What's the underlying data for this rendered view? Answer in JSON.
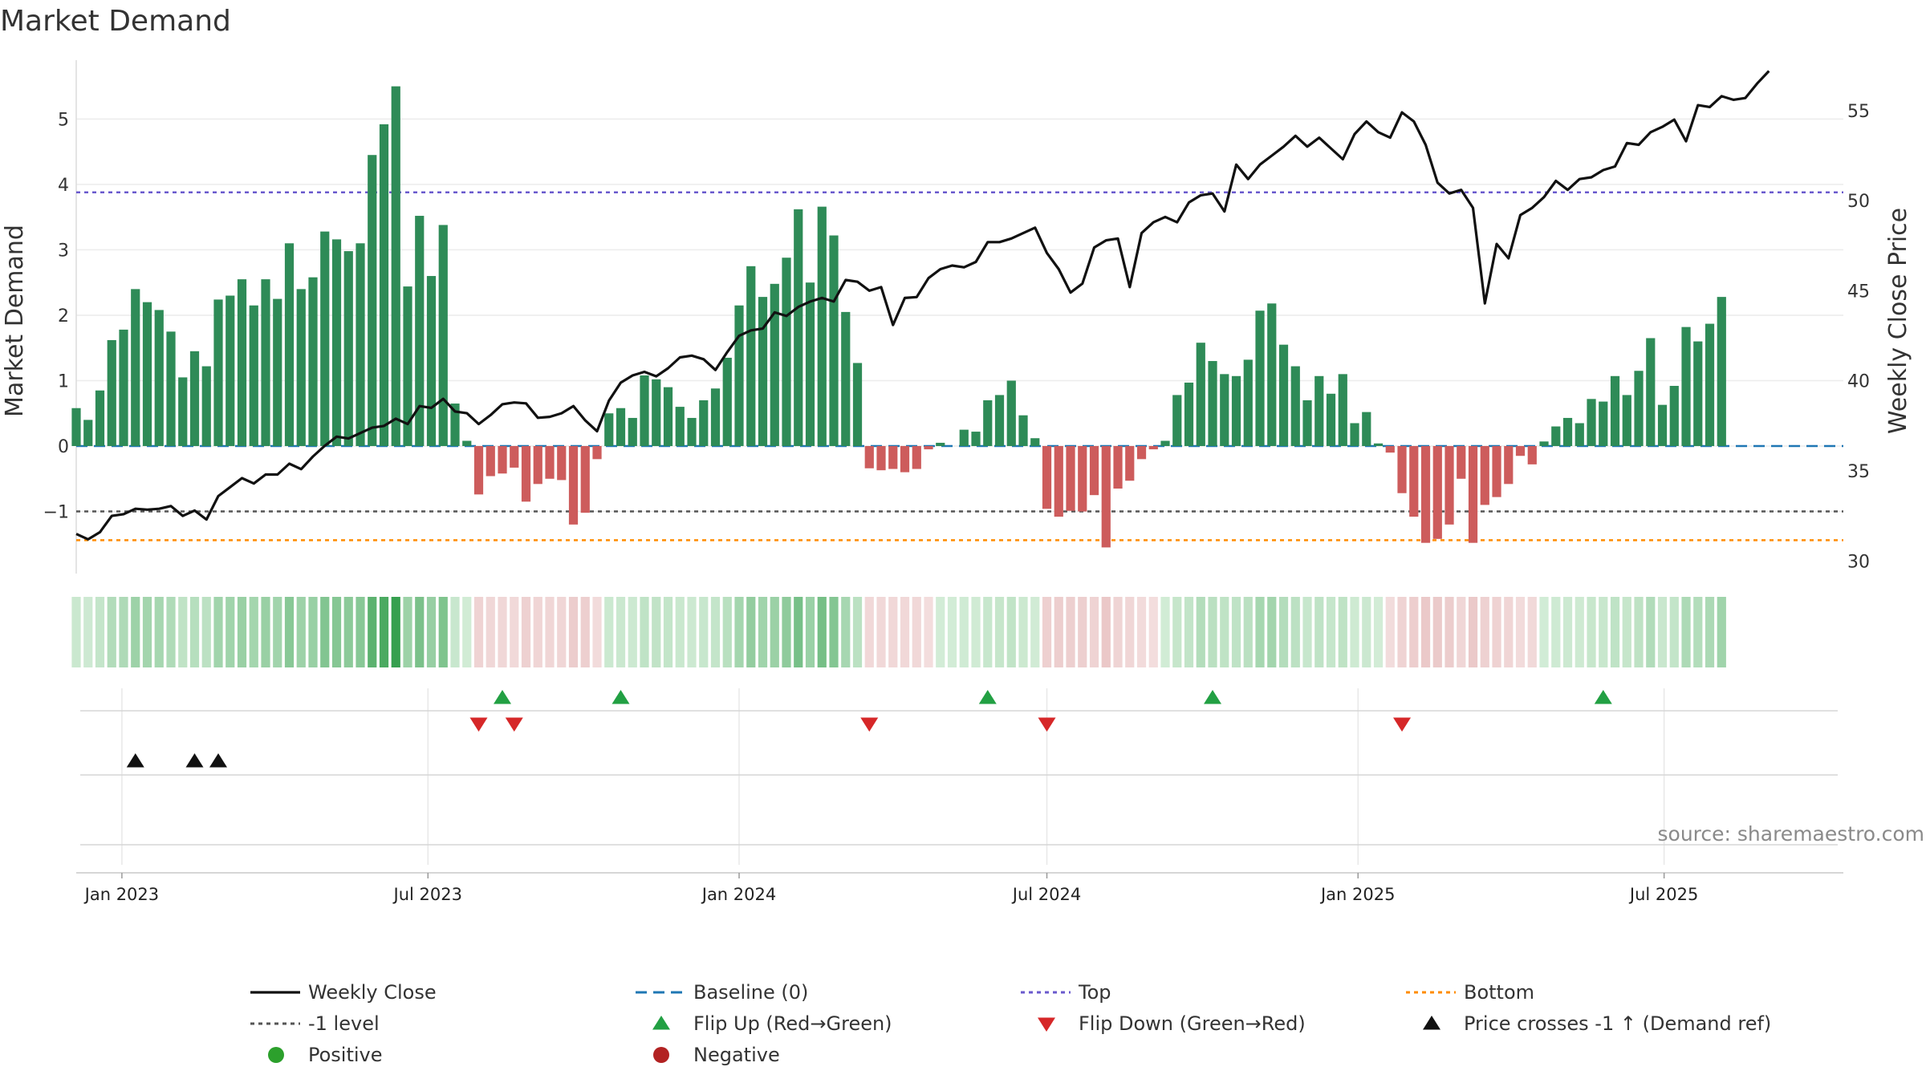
{
  "chart_data": {
    "type": "bar",
    "title": "Market Demand",
    "ylabel_left": "Market Demand",
    "ylabel_right": "Weekly Close Price",
    "ylim_left": [
      -1.95,
      5.9
    ],
    "yticks_left": [
      -1,
      0,
      1,
      2,
      3,
      4,
      5
    ],
    "yticks_left_labels": [
      "−1",
      "0",
      "1",
      "2",
      "3",
      "4",
      "5"
    ],
    "ylim_right": [
      29.3,
      57.8
    ],
    "yticks_right": [
      30,
      35,
      40,
      45,
      50,
      55
    ],
    "yticks_right_labels": [
      "30",
      "35",
      "40",
      "45",
      "50",
      "55"
    ],
    "x_start": "2022-12-05",
    "x_end": "2025-10-15",
    "x_ticks": [
      {
        "label": "Jan 2023",
        "date": "2023-01-01"
      },
      {
        "label": "Jul 2023",
        "date": "2023-07-01"
      },
      {
        "label": "Jan 2024",
        "date": "2024-01-01"
      },
      {
        "label": "Jul 2024",
        "date": "2024-07-01"
      },
      {
        "label": "Jan 2025",
        "date": "2025-01-01"
      },
      {
        "label": "Jul 2025",
        "date": "2025-07-01"
      }
    ],
    "first_week": "2022-12-05",
    "week_interval_days": 7,
    "demand": [
      0.58,
      0.4,
      0.85,
      1.62,
      1.78,
      2.4,
      2.2,
      2.08,
      1.75,
      1.05,
      1.45,
      1.22,
      2.24,
      2.3,
      2.55,
      2.15,
      2.55,
      2.25,
      3.1,
      2.4,
      2.58,
      3.28,
      3.16,
      2.98,
      3.1,
      4.45,
      4.92,
      5.5,
      2.44,
      3.52,
      2.6,
      3.38,
      0.65,
      0.08,
      -0.74,
      -0.46,
      -0.42,
      -0.33,
      -0.85,
      -0.58,
      -0.5,
      -0.52,
      -1.2,
      -1.02,
      -0.2,
      0.5,
      0.58,
      0.43,
      1.08,
      1.02,
      0.9,
      0.6,
      0.43,
      0.7,
      0.88,
      1.35,
      2.15,
      2.75,
      2.28,
      2.48,
      2.88,
      3.62,
      2.5,
      3.66,
      3.22,
      2.05,
      1.27,
      -0.34,
      -0.37,
      -0.35,
      -0.4,
      -0.35,
      -0.05,
      0.05,
      0.0,
      0.25,
      0.22,
      0.7,
      0.78,
      1.0,
      0.47,
      0.12,
      -0.96,
      -1.08,
      -0.99,
      -1.0,
      -0.75,
      -1.55,
      -0.65,
      -0.53,
      -0.2,
      -0.05,
      0.08,
      0.78,
      0.97,
      1.58,
      1.3,
      1.1,
      1.07,
      1.32,
      2.07,
      2.18,
      1.55,
      1.22,
      0.7,
      1.07,
      0.8,
      1.1,
      0.35,
      0.52,
      0.04,
      -0.1,
      -0.72,
      -1.08,
      -1.48,
      -1.42,
      -1.2,
      -0.5,
      -1.48,
      -0.9,
      -0.78,
      -0.58,
      -0.15,
      -0.28,
      0.07,
      0.3,
      0.43,
      0.35,
      0.72,
      0.68,
      1.07,
      0.78,
      1.15,
      1.65,
      0.63,
      0.92,
      1.82,
      1.6,
      1.87,
      2.28
    ],
    "close": [
      31.5,
      31.2,
      31.6,
      32.5,
      32.6,
      32.9,
      32.85,
      32.9,
      33.05,
      32.5,
      32.8,
      32.3,
      33.6,
      34.1,
      34.6,
      34.3,
      34.8,
      34.8,
      35.4,
      35.1,
      35.8,
      36.4,
      36.9,
      36.8,
      37.1,
      37.4,
      37.5,
      37.9,
      37.6,
      38.6,
      38.5,
      39.0,
      38.3,
      38.2,
      37.6,
      38.1,
      38.7,
      38.8,
      38.75,
      37.95,
      38.0,
      38.2,
      38.6,
      37.8,
      37.2,
      38.9,
      39.9,
      40.3,
      40.5,
      40.25,
      40.7,
      41.3,
      41.4,
      41.2,
      40.6,
      41.6,
      42.5,
      42.8,
      42.9,
      43.8,
      43.6,
      44.1,
      44.4,
      44.6,
      44.4,
      45.6,
      45.5,
      45.0,
      45.2,
      43.1,
      44.6,
      44.65,
      45.7,
      46.2,
      46.4,
      46.3,
      46.6,
      47.7,
      47.7,
      47.9,
      48.2,
      48.5,
      47.1,
      46.2,
      44.9,
      45.4,
      47.4,
      47.8,
      47.9,
      45.2,
      48.2,
      48.8,
      49.1,
      48.8,
      49.9,
      50.3,
      50.4,
      49.4,
      52.0,
      51.2,
      52.0,
      52.5,
      53.0,
      53.6,
      53.0,
      53.5,
      52.9,
      52.3,
      53.7,
      54.4,
      53.8,
      53.5,
      54.9,
      54.4,
      53.1,
      51.0,
      50.4,
      50.6,
      49.6,
      44.3,
      47.6,
      46.8,
      49.2,
      49.6,
      50.2,
      51.1,
      50.6,
      51.2,
      51.3,
      51.7,
      51.9,
      53.2,
      53.1,
      53.8,
      54.1,
      54.5,
      53.3,
      55.3,
      55.2,
      55.8,
      55.6,
      55.7,
      56.5,
      57.2
    ],
    "levels": {
      "baseline": 0,
      "top": 3.88,
      "minus_one": -1,
      "bottom": -1.44
    },
    "flip_up_weeks": [
      36,
      46,
      77,
      96,
      129
    ],
    "flip_down_weeks": [
      34,
      37,
      67,
      82,
      112
    ],
    "price_cross_weeks": [
      5,
      10,
      12
    ],
    "source": "source: sharemaestro.com",
    "colors": {
      "positive_bar": "#2e8b57",
      "negative_bar": "#cd5c5c",
      "close_line": "#111111",
      "baseline": "#1f77b4",
      "top": "#6a5acd",
      "minus_one": "#555555",
      "bottom": "#ff8c00",
      "flip_up": "#22a043",
      "flip_down": "#d62728",
      "cross": "#111111",
      "positive_marker": "#2ca02c",
      "negative_marker": "#b22222"
    },
    "legend": [
      {
        "label": "Weekly Close",
        "kind": "line",
        "color": "#111111"
      },
      {
        "label": "Baseline (0)",
        "kind": "dash",
        "color": "#1f77b4"
      },
      {
        "label": "Top",
        "kind": "dot",
        "color": "#6a5acd"
      },
      {
        "label": "Bottom",
        "kind": "dot",
        "color": "#ff8c00"
      },
      {
        "label": "-1 level",
        "kind": "dot",
        "color": "#555555"
      },
      {
        "label": "Flip Up (Red→Green)",
        "kind": "tri-up",
        "color": "#22a043"
      },
      {
        "label": "Flip Down (Green→Red)",
        "kind": "tri-down",
        "color": "#d62728"
      },
      {
        "label": "Price crosses -1 ↑ (Demand ref)",
        "kind": "tri-up",
        "color": "#111111"
      },
      {
        "label": "Positive",
        "kind": "circle",
        "color": "#2ca02c"
      },
      {
        "label": "Negative",
        "kind": "circle",
        "color": "#b22222"
      }
    ]
  }
}
